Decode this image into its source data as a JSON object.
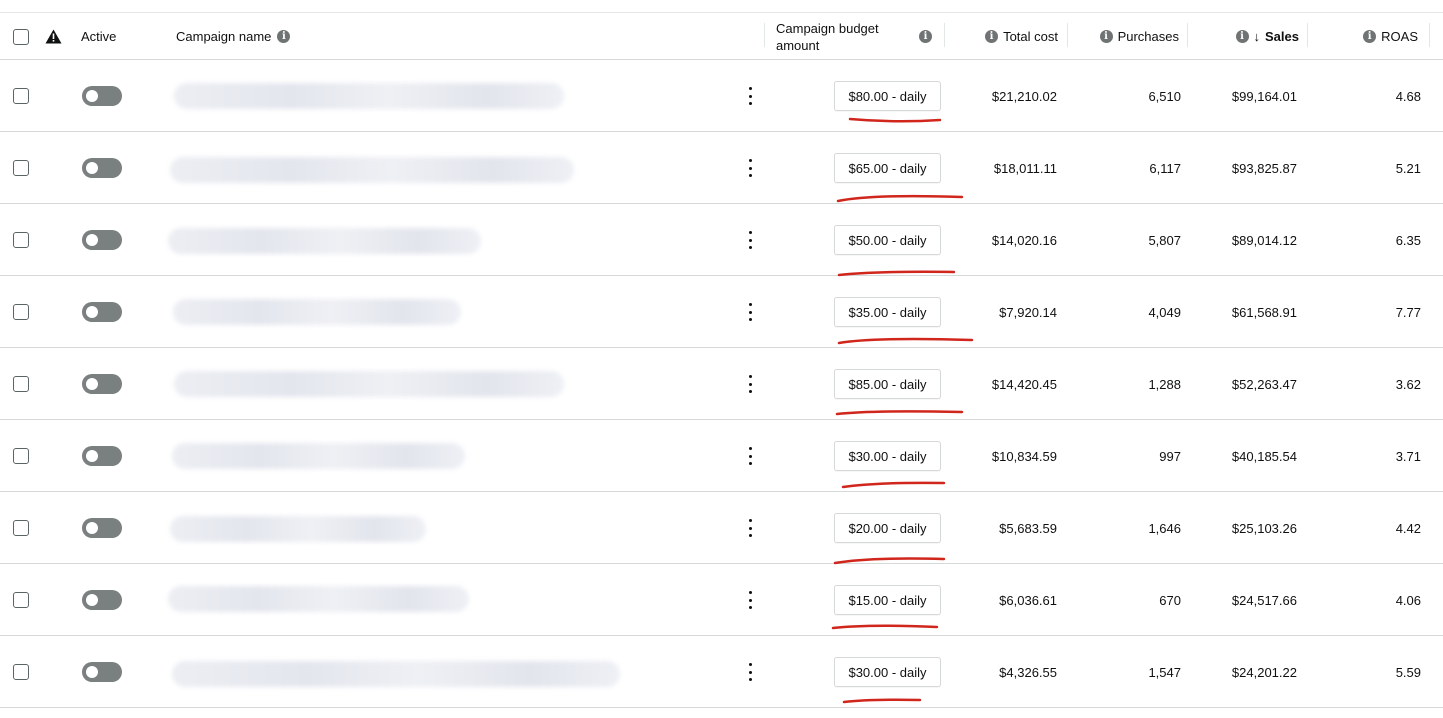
{
  "header": {
    "active_label": "Active",
    "campaign_name_label": "Campaign name",
    "budget_label_line1": "Campaign budget",
    "budget_label_line2": "amount",
    "total_cost_label": "Total cost",
    "purchases_label": "Purchases",
    "sales_label": "Sales",
    "sort_arrow": "↓",
    "roas_label": "ROAS",
    "info_glyph": "i"
  },
  "rows": [
    {
      "budget": "$80.00 - daily",
      "total_cost": "$21,210.02",
      "purchases": "6,510",
      "sales": "$99,164.01",
      "roas": "4.68"
    },
    {
      "budget": "$65.00 - daily",
      "total_cost": "$18,011.11",
      "purchases": "6,117",
      "sales": "$93,825.87",
      "roas": "5.21"
    },
    {
      "budget": "$50.00 - daily",
      "total_cost": "$14,020.16",
      "purchases": "5,807",
      "sales": "$89,014.12",
      "roas": "6.35"
    },
    {
      "budget": "$35.00 - daily",
      "total_cost": "$7,920.14",
      "purchases": "4,049",
      "sales": "$61,568.91",
      "roas": "7.77"
    },
    {
      "budget": "$85.00 - daily",
      "total_cost": "$14,420.45",
      "purchases": "1,288",
      "sales": "$52,263.47",
      "roas": "3.62"
    },
    {
      "budget": "$30.00 - daily",
      "total_cost": "$10,834.59",
      "purchases": "997",
      "sales": "$40,185.54",
      "roas": "3.71"
    },
    {
      "budget": "$20.00 - daily",
      "total_cost": "$5,683.59",
      "purchases": "1,646",
      "sales": "$25,103.26",
      "roas": "4.42"
    },
    {
      "budget": "$15.00 - daily",
      "total_cost": "$6,036.61",
      "purchases": "670",
      "sales": "$24,517.66",
      "roas": "4.06"
    },
    {
      "budget": "$30.00 - daily",
      "total_cost": "$4,326.55",
      "purchases": "1,547",
      "sales": "$24,201.22",
      "roas": "5.59"
    }
  ],
  "colors": {
    "annotation_red": "#d0261c",
    "toggle_off": "#7a7f80",
    "row_border": "#d5d9d9"
  },
  "icons": {
    "warning": "warning-triangle-icon",
    "info": "info-icon",
    "sort": "sort-down-arrow-icon",
    "menu": "more-vertical-icon"
  }
}
